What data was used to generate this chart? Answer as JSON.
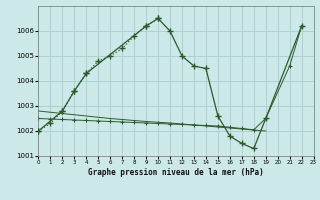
{
  "title": "Graphe pression niveau de la mer (hPa)",
  "bg_color": "#cce8e8",
  "grid_color": "#aacccc",
  "line_color": "#2d5a2d",
  "ylim": [
    1001,
    1007
  ],
  "xlim": [
    0,
    23
  ],
  "yticks": [
    1001,
    1002,
    1003,
    1004,
    1005,
    1006
  ],
  "xticks": [
    0,
    1,
    2,
    3,
    4,
    5,
    6,
    7,
    8,
    9,
    10,
    11,
    12,
    13,
    14,
    15,
    16,
    17,
    18,
    19,
    20,
    21,
    22,
    23
  ],
  "line1_x": [
    0,
    1,
    2,
    3,
    4,
    5,
    6,
    7,
    8,
    9,
    10
  ],
  "line1_y": [
    1002.0,
    1002.3,
    1002.8,
    1003.6,
    1004.3,
    1004.8,
    1005.0,
    1005.3,
    1005.8,
    1006.2,
    1006.5
  ],
  "line2_x": [
    0,
    2,
    3,
    4,
    9,
    10,
    11,
    12,
    13,
    14,
    15,
    16,
    17,
    18,
    19,
    22
  ],
  "line2_y": [
    1002.0,
    1002.8,
    1003.6,
    1004.3,
    1006.2,
    1006.5,
    1006.0,
    1005.0,
    1004.6,
    1004.5,
    1002.6,
    1001.8,
    1001.5,
    1001.3,
    1002.5,
    1006.2
  ],
  "line3_x": [
    0,
    1,
    2,
    3,
    4,
    5,
    6,
    7,
    8,
    9,
    10,
    11,
    12,
    13,
    14,
    15,
    16,
    17,
    18,
    19
  ],
  "line3_y": [
    1002.8,
    1002.75,
    1002.7,
    1002.65,
    1002.6,
    1002.55,
    1002.5,
    1002.46,
    1002.42,
    1002.38,
    1002.35,
    1002.32,
    1002.28,
    1002.24,
    1002.2,
    1002.16,
    1002.12,
    1002.08,
    1002.04,
    1002.0
  ],
  "line4_x": [
    0,
    1,
    2,
    3,
    4,
    5,
    6,
    7,
    8,
    9,
    10,
    11,
    12,
    13,
    14,
    15,
    16,
    17,
    18,
    19,
    21,
    22
  ],
  "line4_y": [
    1002.5,
    1002.48,
    1002.46,
    1002.44,
    1002.42,
    1002.4,
    1002.38,
    1002.36,
    1002.34,
    1002.32,
    1002.3,
    1002.28,
    1002.26,
    1002.24,
    1002.22,
    1002.2,
    1002.15,
    1002.1,
    1002.05,
    1002.5,
    1004.6,
    1006.2
  ]
}
